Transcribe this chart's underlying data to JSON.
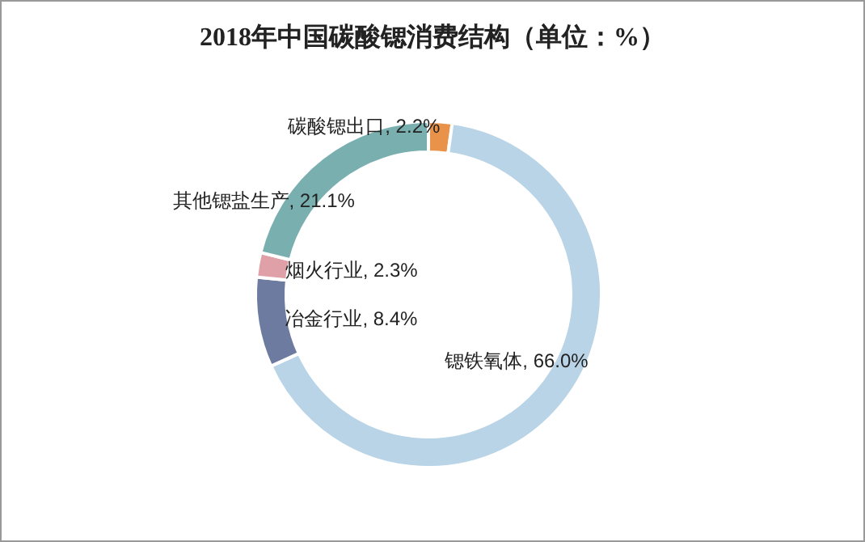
{
  "chart_data": {
    "type": "donut",
    "title": "2018年中国碳酸锶消费结构（单位：%）",
    "categories": [
      "碳酸锶出口",
      "锶铁氧体",
      "冶金行业",
      "烟火行业",
      "其他锶盐生产"
    ],
    "values": [
      2.2,
      66.0,
      8.4,
      2.3,
      21.1
    ],
    "value_labels": [
      "2.2%",
      "66.0%",
      "8.4%",
      "2.3%",
      "21.1%"
    ],
    "colors": [
      "#e8924a",
      "#b8d4e6",
      "#6e7ba0",
      "#e0a0a8",
      "#7aafb0"
    ]
  }
}
